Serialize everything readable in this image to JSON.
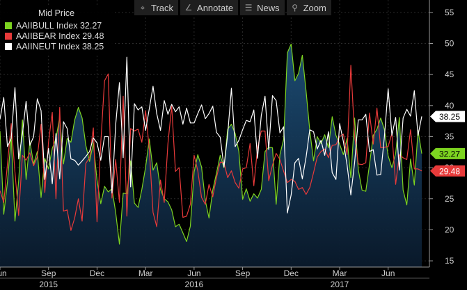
{
  "toolbar": {
    "buttons": [
      {
        "label": "Track",
        "icon": "crosshair-icon"
      },
      {
        "label": "Annotate",
        "icon": "pencil-icon"
      },
      {
        "label": "News",
        "icon": "news-icon"
      },
      {
        "label": "Zoom",
        "icon": "magnifier-icon"
      }
    ]
  },
  "chart_data": {
    "type": "line",
    "legend_title": "Mid Price",
    "legend_position": "top-left",
    "ylim": [
      14,
      57
    ],
    "yticks": [
      15,
      20,
      25,
      30,
      35,
      40,
      45,
      50,
      55
    ],
    "x_month_labels": [
      {
        "t": 0,
        "label": "Jun"
      },
      {
        "t": 13,
        "label": "Sep"
      },
      {
        "t": 26,
        "label": "Dec"
      },
      {
        "t": 39,
        "label": "Mar"
      },
      {
        "t": 52,
        "label": "Jun"
      },
      {
        "t": 65,
        "label": "Sep"
      },
      {
        "t": 78,
        "label": "Dec"
      },
      {
        "t": 91,
        "label": "Mar"
      },
      {
        "t": 104,
        "label": "Jun"
      }
    ],
    "x_year_labels": [
      {
        "t": 13,
        "label": "2015"
      },
      {
        "t": 52,
        "label": "2016"
      },
      {
        "t": 91,
        "label": "2017"
      }
    ],
    "series": [
      {
        "name": "AAIIBULL Index",
        "value_label": "32.27",
        "color": "#7dd420",
        "last": 32.27,
        "values": [
          35.9,
          22.5,
          27.7,
          35.0,
          21.4,
          27.9,
          37.7,
          28.1,
          34.2,
          30.6,
          32.6,
          25.2,
          31.5,
          29.8,
          33.1,
          34.7,
          38.1,
          30.6,
          34.7,
          34.1,
          37.7,
          39.7,
          38.0,
          33.6,
          31.0,
          34.0,
          28.0,
          24.2,
          27.0,
          26.1,
          26.6,
          22.8,
          17.7,
          25.9,
          25.8,
          31.1,
          24.3,
          23.6,
          26.5,
          30.1,
          34.6,
          29.6,
          30.8,
          26.5,
          25.0,
          24.5,
          23.2,
          20.5,
          20.9,
          19.5,
          18.1,
          20.6,
          29.3,
          32.1,
          30.1,
          24.7,
          21.9,
          26.4,
          29.1,
          32.0,
          30.0,
          36.2,
          37.0,
          35.5,
          32.6,
          24.9,
          26.6,
          24.6,
          25.8,
          25.1,
          26.5,
          32.6,
          33.3,
          33.2,
          24.1,
          32.1,
          34.6,
          48.5,
          49.9,
          44.0,
          45.2,
          48.1,
          42.3,
          36.0,
          31.1,
          35.0,
          33.9,
          35.3,
          33.2,
          38.2,
          35.2,
          33.8,
          32.1,
          34.7,
          28.4,
          38.0,
          29.7,
          26.4,
          26.2,
          30.5,
          35.2,
          36.2,
          38.0,
          36.1,
          31.9,
          30.0,
          32.3,
          38.1,
          26.4,
          24.0,
          31.4,
          27.2,
          36.0,
          32.27
        ]
      },
      {
        "name": "AAIIBEAR Index",
        "value_label": "29.48",
        "color": "#e83a3a",
        "last": 29.48,
        "values": [
          26.3,
          24.4,
          30.6,
          37.1,
          29.3,
          22.3,
          32.0,
          31.2,
          32.4,
          30.3,
          31.7,
          37.0,
          26.0,
          34.1,
          38.9,
          25.0,
          39.7,
          23.0,
          23.2,
          19.9,
          21.9,
          25.0,
          21.4,
          30.7,
          31.6,
          36.4,
          21.3,
          34.0,
          44.0,
          45.1,
          25.1,
          31.3,
          24.4,
          41.5,
          22.2,
          36.3,
          35.9,
          36.2,
          34.1,
          39.2,
          33.0,
          22.8,
          20.5,
          28.0,
          24.4,
          33.9,
          39.9,
          29.4,
          30.0,
          22.0,
          22.2,
          24.1,
          32.0,
          29.5,
          25.2,
          24.1,
          27.3,
          25.3,
          28.4,
          30.9,
          30.8,
          28.4,
          29.5,
          27.6,
          26.7,
          29.8,
          30.0,
          33.9,
          27.1,
          33.2,
          35.9,
          35.9,
          27.9,
          30.4,
          32.3,
          31.3,
          29.4,
          27.6,
          28.1,
          27.8,
          26.5,
          26.8,
          25.7,
          26.8,
          29.2,
          31.7,
          32.6,
          33.0,
          31.6,
          33.6,
          33.7,
          35.0,
          35.4,
          32.1,
          46.5,
          35.1,
          30.6,
          30.5,
          30.8,
          38.8,
          33.8,
          39.6,
          33.2,
          33.3,
          33.4,
          35.5,
          27.3,
          32.1,
          31.6,
          31.3,
          36.1,
          29.8,
          29.8,
          29.48
        ]
      },
      {
        "name": "AAIINEUT Index",
        "value_label": "38.25",
        "color": "#ffffff",
        "last": 38.25,
        "values": [
          37.8,
          41.3,
          33.4,
          34.7,
          42.9,
          31.4,
          35.4,
          40.7,
          33.6,
          35.0,
          41.1,
          39.2,
          28.1,
          33.1,
          27.4,
          35.5,
          28.2,
          37.4,
          36.3,
          31.4,
          31.2,
          30.4,
          31.1,
          31.8,
          32.6,
          34.8,
          34.0,
          31.2,
          35.0,
          35.0,
          25.9,
          36.9,
          43.7,
          31.6,
          47.8,
          26.9,
          40.3,
          39.3,
          39.8,
          36.0,
          39.5,
          43.1,
          38.7,
          36.0,
          40.8,
          38.6,
          40.2,
          39.0,
          39.8,
          37.0,
          39.6,
          37.2,
          37.2,
          38.7,
          40.1,
          37.9,
          38.7,
          39.9,
          35.7,
          34.9,
          30.1,
          35.3,
          42.8,
          33.4,
          34.4,
          36.1,
          37.6,
          37.4,
          39.3,
          31.5,
          38.4,
          41.5,
          32.9,
          41.6,
          40.8,
          35.6,
          36.6,
          22.7,
          25.6,
          30.8,
          31.5,
          28.2,
          31.7,
          36.1,
          35.8,
          33.0,
          34.4,
          32.0,
          35.8,
          29.2,
          28.1,
          37.1,
          34.2,
          30.4,
          25.6,
          30.8,
          37.7,
          37.7,
          38.6,
          32.6,
          32.9,
          28.8,
          28.9,
          35.1,
          42.7,
          35.2,
          38.1,
          29.6,
          38.0,
          39.4,
          38.3,
          42.4,
          35.2,
          38.25
        ]
      }
    ]
  }
}
